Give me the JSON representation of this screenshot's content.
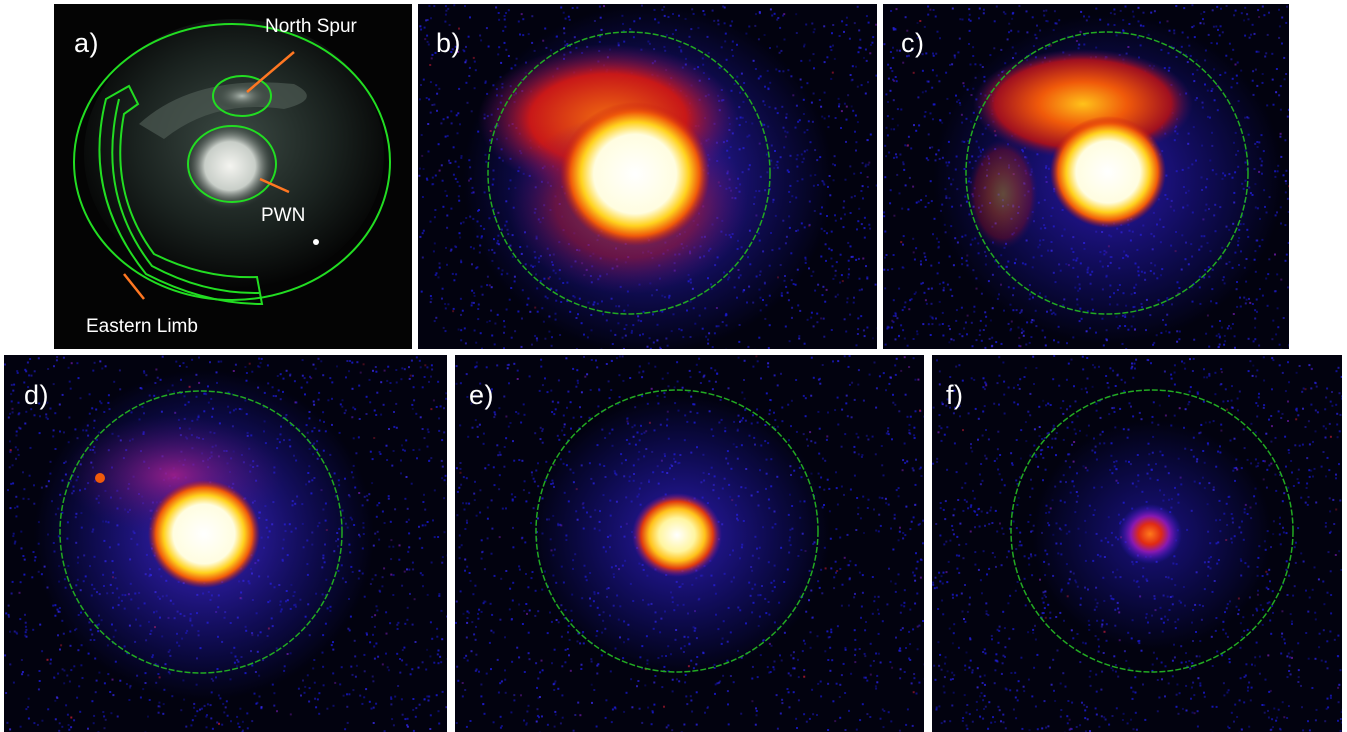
{
  "panels": [
    {
      "id": "a",
      "label": "a)"
    },
    {
      "id": "b",
      "label": "b)"
    },
    {
      "id": "c",
      "label": "c)"
    },
    {
      "id": "d",
      "label": "d)"
    },
    {
      "id": "e",
      "label": "e)"
    },
    {
      "id": "f",
      "label": "f)"
    }
  ],
  "annotations": {
    "north_spur": "North Spur",
    "pwn": "PWN",
    "eastern_limb": "Eastern Limb"
  },
  "colors": {
    "region_outline": "#22dd22",
    "pointer": "#ff7722",
    "background": "#02020f",
    "noise": "#1a1ad8"
  }
}
